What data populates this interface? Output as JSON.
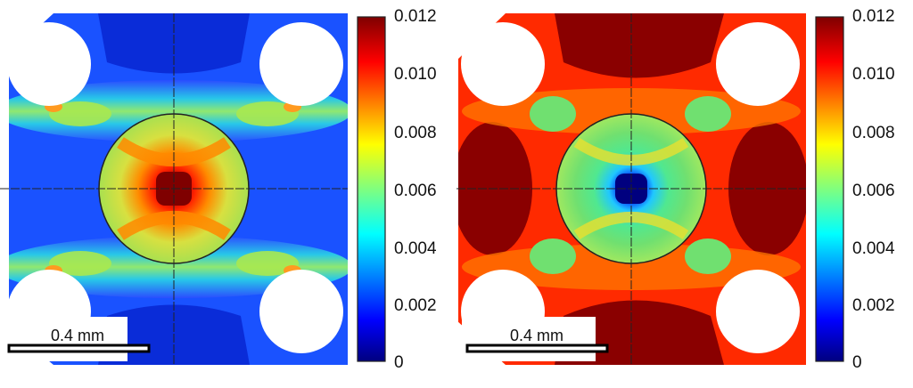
{
  "figure": {
    "panels": [
      {
        "id": "left",
        "colormap": "jet",
        "scale_bar": {
          "label": "0.4 mm"
        },
        "colorbar": {
          "ticks": [
            "0.012",
            "0.010",
            "0.008",
            "0.006",
            "0.004",
            "0.002",
            "0"
          ]
        }
      },
      {
        "id": "right",
        "colormap": "jet",
        "scale_bar": {
          "label": "0.4 mm"
        },
        "colorbar": {
          "ticks": [
            "0.012",
            "0.010",
            "0.008",
            "0.006",
            "0.004",
            "0.002",
            "0"
          ]
        }
      }
    ]
  },
  "colors": {
    "jet_dark_red": "#7f0000",
    "jet_red": "#ff0000",
    "jet_orange": "#ff8c00",
    "jet_yellow": "#ffff00",
    "jet_green": "#7fff7f",
    "jet_cyan": "#00ffff",
    "jet_blue": "#0000ff",
    "jet_dark_blue": "#00007f"
  }
}
